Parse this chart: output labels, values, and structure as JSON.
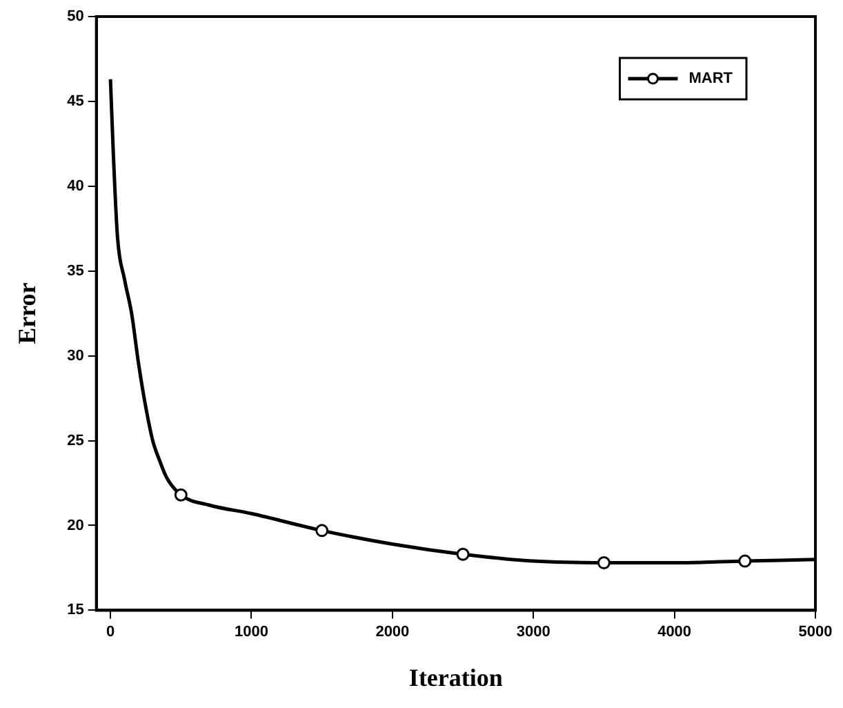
{
  "chart_data": {
    "type": "line",
    "xlabel": "Iteration",
    "ylabel": "Error",
    "xlim": [
      -100,
      5000
    ],
    "xticks": [
      0,
      1000,
      2000,
      3000,
      4000,
      5000
    ],
    "ylim": [
      15,
      50
    ],
    "yticks": [
      15,
      20,
      25,
      30,
      35,
      40,
      45,
      50
    ],
    "grid": false,
    "legend": "top right",
    "series": [
      {
        "name": "MART",
        "color": "#000000",
        "marker": "none",
        "x": [
          0,
          20,
          50,
          100,
          150,
          200,
          250,
          300,
          350,
          400,
          500,
          700,
          1000,
          1500,
          2000,
          2500,
          3000,
          3500,
          4000,
          4500,
          5000
        ],
        "values": [
          46.3,
          42,
          37,
          34.5,
          32.5,
          29.5,
          27,
          25,
          23.8,
          22.8,
          21.8,
          21.2,
          20.7,
          19.7,
          18.9,
          18.3,
          17.9,
          17.8,
          17.8,
          17.9,
          18.0
        ]
      },
      {
        "type": "scatter",
        "color": "#000000",
        "marker": "circle",
        "x": [
          500,
          1500,
          2500,
          3500,
          4500
        ],
        "values": [
          21.8,
          19.7,
          18.3,
          17.8,
          17.9
        ]
      }
    ]
  }
}
